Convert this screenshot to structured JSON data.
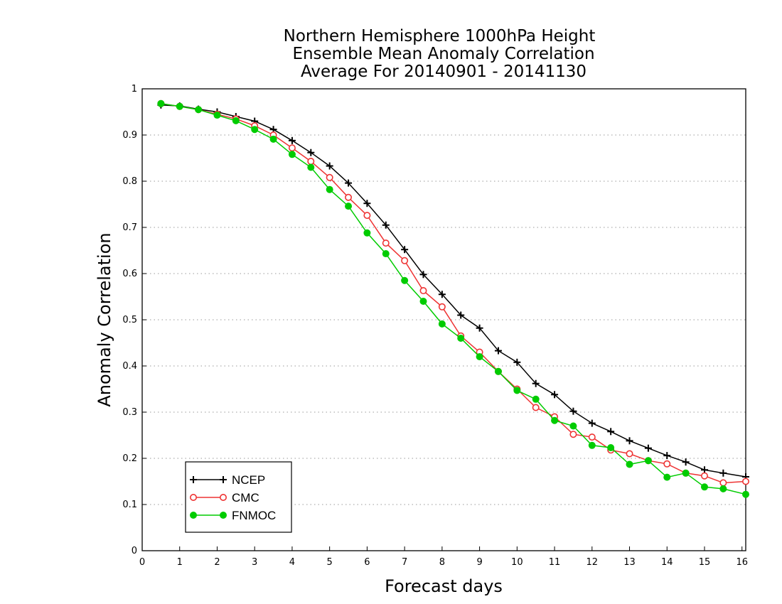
{
  "chart_data": {
    "type": "line",
    "title_lines": [
      "Northern Hemisphere 1000hPa Height",
      "Ensemble Mean Anomaly Correlation",
      "Average For 20140901 - 20141130"
    ],
    "xlabel": "Forecast days",
    "ylabel": "Anomaly Correlation",
    "xlim": [
      0,
      16.1
    ],
    "ylim": [
      0,
      1
    ],
    "xticks": [
      "0",
      "1",
      "2",
      "3",
      "4",
      "5",
      "6",
      "7",
      "8",
      "9",
      "10",
      "11",
      "12",
      "13",
      "14",
      "15",
      "16"
    ],
    "yticks": [
      "0",
      "0.1",
      "0.2",
      "0.3",
      "0.4",
      "0.5",
      "0.6",
      "0.7",
      "0.8",
      "0.9",
      "1"
    ],
    "grid": "horizontal-dotted",
    "legend_position": "bottom-left",
    "x": [
      0.5,
      1,
      1.5,
      2,
      2.5,
      3,
      3.5,
      4,
      4.5,
      5,
      5.5,
      6,
      6.5,
      7,
      7.5,
      8,
      8.5,
      9,
      9.5,
      10,
      10.5,
      11,
      11.5,
      12,
      12.5,
      13,
      13.5,
      14,
      14.5,
      15,
      15.5,
      16.1
    ],
    "series": [
      {
        "name": "NCEP",
        "color": "#000000",
        "marker": "plus",
        "values": [
          0.965,
          0.963,
          0.956,
          0.95,
          0.94,
          0.93,
          0.912,
          0.888,
          0.862,
          0.833,
          0.796,
          0.752,
          0.705,
          0.652,
          0.598,
          0.555,
          0.51,
          0.482,
          0.433,
          0.408,
          0.362,
          0.338,
          0.302,
          0.276,
          0.258,
          0.238,
          0.222,
          0.206,
          0.192,
          0.175,
          0.168,
          0.16
        ]
      },
      {
        "name": "CMC",
        "color": "#ee3333",
        "marker": "open-circle",
        "values": [
          0.968,
          0.962,
          0.955,
          0.945,
          0.935,
          0.92,
          0.9,
          0.872,
          0.843,
          0.808,
          0.765,
          0.726,
          0.666,
          0.628,
          0.563,
          0.528,
          0.465,
          0.43,
          0.388,
          0.35,
          0.31,
          0.29,
          0.252,
          0.246,
          0.218,
          0.21,
          0.195,
          0.188,
          0.168,
          0.162,
          0.147,
          0.15
        ]
      },
      {
        "name": "FNMOC",
        "color": "#00cc00",
        "marker": "filled-circle",
        "values": [
          0.968,
          0.962,
          0.955,
          0.943,
          0.931,
          0.912,
          0.891,
          0.858,
          0.83,
          0.782,
          0.746,
          0.688,
          0.643,
          0.585,
          0.54,
          0.491,
          0.46,
          0.42,
          0.388,
          0.347,
          0.328,
          0.282,
          0.27,
          0.228,
          0.223,
          0.187,
          0.195,
          0.159,
          0.168,
          0.138,
          0.134,
          0.122
        ]
      }
    ]
  }
}
